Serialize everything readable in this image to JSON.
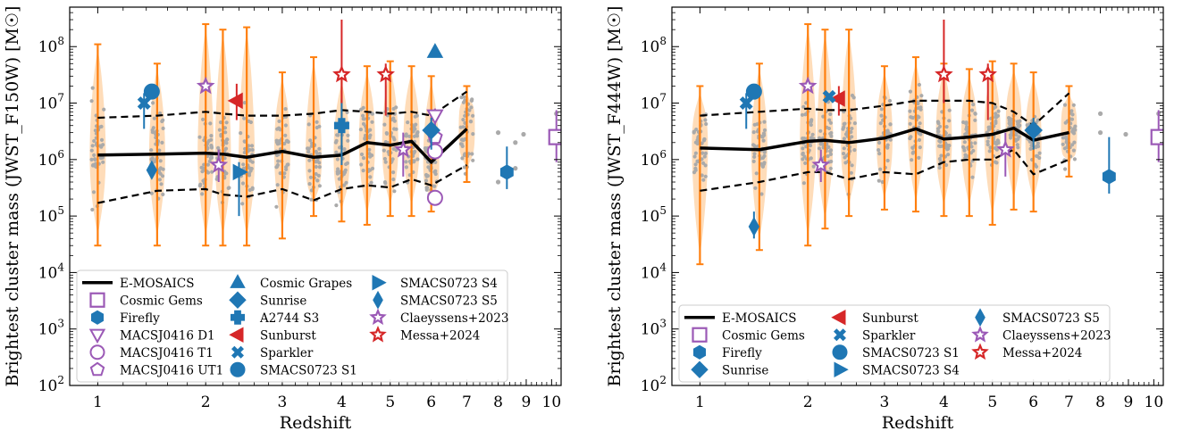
{
  "chart_data": [
    {
      "type": "scatter",
      "title": "",
      "xlabel": "Redshift",
      "ylabel": "Brightest cluster mass (JWST_F150W) [M☉]",
      "xscale": "log(1+z)",
      "yscale": "log",
      "xlim": [
        0.8,
        10.4
      ],
      "ylim": [
        100,
        500000000
      ],
      "x_ticks": [
        "1",
        "2",
        "3",
        "4",
        "5",
        "6",
        "7",
        "8",
        "9",
        "10"
      ],
      "y_ticks": [
        "10^2",
        "10^3",
        "10^4",
        "10^5",
        "10^6",
        "10^7",
        "10^8"
      ],
      "legend_position": "lower-left",
      "legend_columns": 3,
      "emosaics": {
        "z": [
          1.0,
          1.5,
          2.0,
          2.2,
          2.5,
          3.0,
          3.5,
          4.0,
          4.5,
          5.0,
          5.5,
          6.0,
          7.0
        ],
        "median": [
          1200000.0,
          1250000.0,
          1300000.0,
          1250000.0,
          1100000.0,
          1400000.0,
          1100000.0,
          1200000.0,
          2000000.0,
          1800000.0,
          2100000.0,
          900000.0,
          3500000.0
        ],
        "upper": [
          5500000.0,
          6000000.0,
          7000000.0,
          6500000.0,
          6000000.0,
          6000000.0,
          6500000.0,
          7500000.0,
          7000000.0,
          6500000.0,
          7000000.0,
          6000000.0,
          16000000.0
        ],
        "lower": [
          170000.0,
          280000.0,
          300000.0,
          240000.0,
          220000.0,
          300000.0,
          190000.0,
          300000.0,
          350000.0,
          320000.0,
          450000.0,
          350000.0,
          800000.0
        ],
        "err_hi": [
          110000000.0,
          50000000.0,
          250000000.0,
          200000000.0,
          220000000.0,
          35000000.0,
          65000000.0,
          30000000.0,
          45000000.0,
          55000000.0,
          45000000.0,
          30000000.0,
          20000000.0
        ],
        "err_lo": [
          30000.0,
          30000.0,
          30000.0,
          30000.0,
          30000.0,
          40000.0,
          100000.0,
          80000.0,
          70000.0,
          100000.0,
          100000.0,
          120000.0,
          400000.0
        ],
        "extra_points": [
          [
            8.0,
            400000.0
          ],
          [
            8.0,
            3000000.0
          ],
          [
            8.6,
            700000.0
          ],
          [
            8.6,
            2000000.0
          ],
          [
            8.9,
            2800000.0
          ],
          [
            10.2,
            6500000.0
          ]
        ]
      },
      "legend": [
        "E-MOSAICS",
        "Cosmic Gems",
        "Firefly",
        "MACSJ0416 D1",
        "MACSJ0416 T1",
        "MACSJ0416 UT1",
        "Cosmic Grapes",
        "Sunrise",
        "A2744 S3",
        "Sunburst",
        "Sparkler",
        "SMACS0723 S1",
        "SMACS0723 S4",
        "SMACS0723 S5",
        "Claeyssens+2023",
        "Messa+2024"
      ],
      "objects": [
        {
          "name": "Cosmic Gems",
          "marker": "square",
          "color": "#9b59b6",
          "filled": false,
          "z": 10.2,
          "y": 2500000.0,
          "yerr": [
            900000.0,
            7500000.0
          ]
        },
        {
          "name": "Firefly",
          "marker": "hexagon",
          "color": "#1f77b4",
          "filled": true,
          "z": 8.3,
          "y": 600000.0,
          "yerr": [
            300000.0,
            1700000.0
          ]
        },
        {
          "name": "MACSJ0416 D1",
          "marker": "triangle-down",
          "color": "#9b59b6",
          "filled": false,
          "z": 6.1,
          "y": 6000000.0,
          "yerr": [
            2000000.0,
            8000000.0
          ]
        },
        {
          "name": "MACSJ0416 T1",
          "marker": "circle",
          "color": "#9b59b6",
          "filled": false,
          "z": 6.1,
          "y": 1400000.0,
          "yerr": null
        },
        {
          "name": "MACSJ0416 T1",
          "marker": "circle",
          "color": "#9b59b6",
          "filled": false,
          "z": 6.1,
          "y": 210000.0,
          "yerr": null
        },
        {
          "name": "MACSJ0416 UT1",
          "marker": "pentagon",
          "color": "#9b59b6",
          "filled": false,
          "z": 6.1,
          "y": 2500000.0,
          "yerr": null
        },
        {
          "name": "Cosmic Grapes",
          "marker": "triangle-up",
          "color": "#1f77b4",
          "filled": true,
          "z": 6.1,
          "y": 80000000.0,
          "yerr": null
        },
        {
          "name": "Sunrise",
          "marker": "diamond",
          "color": "#1f77b4",
          "filled": true,
          "z": 6.0,
          "y": 3300000.0,
          "yerr": [
            1500000.0,
            5500000.0
          ]
        },
        {
          "name": "Sunrise",
          "marker": "thin_diamond",
          "color": "#1f77b4",
          "filled": true,
          "z": 1.45,
          "y": 650000.0,
          "yerr": null
        },
        {
          "name": "A2744 S3",
          "marker": "plus",
          "color": "#1f77b4",
          "filled": true,
          "z": 4.0,
          "y": 4000000.0,
          "yerr": [
            800000.0,
            12000000.0
          ]
        },
        {
          "name": "Sunburst",
          "marker": "triangle-left",
          "color": "#d62728",
          "filled": true,
          "z": 2.37,
          "y": 11000000.0,
          "yerr": [
            5000000.0,
            22000000.0
          ]
        },
        {
          "name": "Sparkler",
          "marker": "x",
          "color": "#1f77b4",
          "filled": true,
          "z": 1.38,
          "y": 10000000.0,
          "yerr": [
            3500000.0,
            15000000.0
          ]
        },
        {
          "name": "SMACS0723 S1",
          "marker": "circle",
          "color": "#1f77b4",
          "filled": true,
          "z": 1.45,
          "y": 16000000.0,
          "yerr": null
        },
        {
          "name": "SMACS0723 S4",
          "marker": "triangle-right",
          "color": "#1f77b4",
          "filled": true,
          "z": 2.4,
          "y": 600000.0,
          "yerr": [
            100000.0,
            900000.0
          ]
        },
        {
          "name": "Claeyssens+2023",
          "marker": "star",
          "color": "#9b59b6",
          "filled": false,
          "z": 2.0,
          "y": 20000000.0,
          "yerr": null
        },
        {
          "name": "Claeyssens+2023",
          "marker": "star",
          "color": "#9b59b6",
          "filled": false,
          "z": 2.15,
          "y": 800000.0,
          "yerr": [
            400000.0,
            1500000.0
          ]
        },
        {
          "name": "Claeyssens+2023",
          "marker": "star",
          "color": "#9b59b6",
          "filled": false,
          "z": 5.3,
          "y": 1500000.0,
          "yerr": [
            500000.0,
            3000000.0
          ]
        },
        {
          "name": "Messa+2024",
          "marker": "star",
          "color": "#d62728",
          "filled": false,
          "z": 4.0,
          "y": 32000000.0,
          "yerr": [
            10000000.0,
            300000000.0
          ]
        },
        {
          "name": "Messa+2024",
          "marker": "star",
          "color": "#d62728",
          "filled": false,
          "z": 4.9,
          "y": 32000000.0,
          "yerr": [
            6000000.0,
            50000000.0
          ]
        }
      ]
    },
    {
      "type": "scatter",
      "title": "",
      "xlabel": "Redshift",
      "ylabel": "Brightest cluster mass (JWST_F444W) [M☉]",
      "xscale": "log(1+z)",
      "yscale": "log",
      "xlim": [
        0.8,
        10.4
      ],
      "ylim": [
        100,
        500000000
      ],
      "x_ticks": [
        "1",
        "2",
        "3",
        "4",
        "5",
        "6",
        "7",
        "8",
        "9",
        "10"
      ],
      "y_ticks": [
        "10^2",
        "10^3",
        "10^4",
        "10^5",
        "10^6",
        "10^7",
        "10^8"
      ],
      "legend_position": "lower-left",
      "legend_columns": 3,
      "emosaics": {
        "z": [
          1.0,
          1.5,
          2.0,
          2.2,
          2.5,
          3.0,
          3.5,
          4.0,
          4.5,
          5.0,
          5.5,
          6.0,
          7.0
        ],
        "median": [
          1600000.0,
          1500000.0,
          2100000.0,
          2200000.0,
          2000000.0,
          2400000.0,
          3500000.0,
          2300000.0,
          2500000.0,
          2800000.0,
          3600000.0,
          2200000.0,
          3000000.0
        ],
        "upper": [
          6000000.0,
          7000000.0,
          8000000.0,
          7500000.0,
          7500000.0,
          9000000.0,
          11000000.0,
          11000000.0,
          11000000.0,
          10000000.0,
          7000000.0,
          4000000.0,
          15000000.0
        ],
        "lower": [
          280000.0,
          400000.0,
          600000.0,
          600000.0,
          450000.0,
          600000.0,
          550000.0,
          900000.0,
          1000000.0,
          1000000.0,
          1500000.0,
          550000.0,
          1000000.0
        ],
        "err_hi": [
          20000000.0,
          50000000.0,
          250000000.0,
          200000000.0,
          200000000.0,
          45000000.0,
          65000000.0,
          50000000.0,
          40000000.0,
          55000000.0,
          50000000.0,
          35000000.0,
          20000000.0
        ],
        "err_lo": [
          14000.0,
          25000.0,
          30000.0,
          60000.0,
          100000.0,
          130000.0,
          120000.0,
          100000.0,
          100000.0,
          70000.0,
          130000.0,
          120000.0,
          500000.0
        ],
        "extra_points": [
          [
            8.0,
            3000000.0
          ],
          [
            8.0,
            6500000.0
          ],
          [
            8.9,
            2800000.0
          ],
          [
            10.2,
            6500000.0
          ]
        ]
      },
      "legend": [
        "E-MOSAICS",
        "Cosmic Gems",
        "Firefly",
        "Sunrise",
        "Sunburst",
        "Sparkler",
        "SMACS0723 S1",
        "SMACS0723 S4",
        "SMACS0723 S5",
        "Claeyssens+2023",
        "Messa+2024"
      ],
      "objects": [
        {
          "name": "Cosmic Gems",
          "marker": "square",
          "color": "#9b59b6",
          "filled": false,
          "z": 10.2,
          "y": 2500000.0,
          "yerr": [
            900000.0,
            7500000.0
          ]
        },
        {
          "name": "Firefly",
          "marker": "hexagon",
          "color": "#1f77b4",
          "filled": true,
          "z": 8.3,
          "y": 500000.0,
          "yerr": [
            250000.0,
            2500000.0
          ]
        },
        {
          "name": "Sunrise",
          "marker": "diamond",
          "color": "#1f77b4",
          "filled": true,
          "z": 6.0,
          "y": 3300000.0,
          "yerr": [
            1500000.0,
            5500000.0
          ]
        },
        {
          "name": "SMACS0723 S5",
          "marker": "thin_diamond",
          "color": "#1f77b4",
          "filled": true,
          "z": 1.45,
          "y": 65000.0,
          "yerr": [
            40000.0,
            120000.0
          ]
        },
        {
          "name": "Sunburst",
          "marker": "triangle-left",
          "color": "#d62728",
          "filled": true,
          "z": 2.37,
          "y": 12000000.0,
          "yerr": [
            6000000.0,
            20000000.0
          ]
        },
        {
          "name": "Sparkler",
          "marker": "x",
          "color": "#1f77b4",
          "filled": true,
          "z": 1.38,
          "y": 10000000.0,
          "yerr": [
            3500000.0,
            15000000.0
          ]
        },
        {
          "name": "Sparkler",
          "marker": "x",
          "color": "#1f77b4",
          "filled": true,
          "z": 2.25,
          "y": 13000000.0,
          "yerr": null
        },
        {
          "name": "SMACS0723 S1",
          "marker": "circle",
          "color": "#1f77b4",
          "filled": true,
          "z": 1.45,
          "y": 16000000.0,
          "yerr": null
        },
        {
          "name": "Claeyssens+2023",
          "marker": "star",
          "color": "#9b59b6",
          "filled": false,
          "z": 2.0,
          "y": 20000000.0,
          "yerr": null
        },
        {
          "name": "Claeyssens+2023",
          "marker": "star",
          "color": "#9b59b6",
          "filled": false,
          "z": 2.15,
          "y": 800000.0,
          "yerr": [
            400000.0,
            1500000.0
          ]
        },
        {
          "name": "Claeyssens+2023",
          "marker": "star",
          "color": "#9b59b6",
          "filled": false,
          "z": 5.3,
          "y": 1500000.0,
          "yerr": [
            500000.0,
            3000000.0
          ]
        },
        {
          "name": "Messa+2024",
          "marker": "star",
          "color": "#d62728",
          "filled": false,
          "z": 4.0,
          "y": 32000000.0,
          "yerr": [
            10000000.0,
            300000000.0
          ]
        },
        {
          "name": "Messa+2024",
          "marker": "star",
          "color": "#d62728",
          "filled": false,
          "z": 4.9,
          "y": 32000000.0,
          "yerr": [
            5000000.0,
            50000000.0
          ]
        }
      ]
    }
  ],
  "colors": {
    "violin": "#fdd0a2",
    "errorbar": "#ff7f0e",
    "points": "#aaaaaa",
    "blue": "#1f77b4",
    "purple": "#9b59b6",
    "red": "#d62728"
  }
}
